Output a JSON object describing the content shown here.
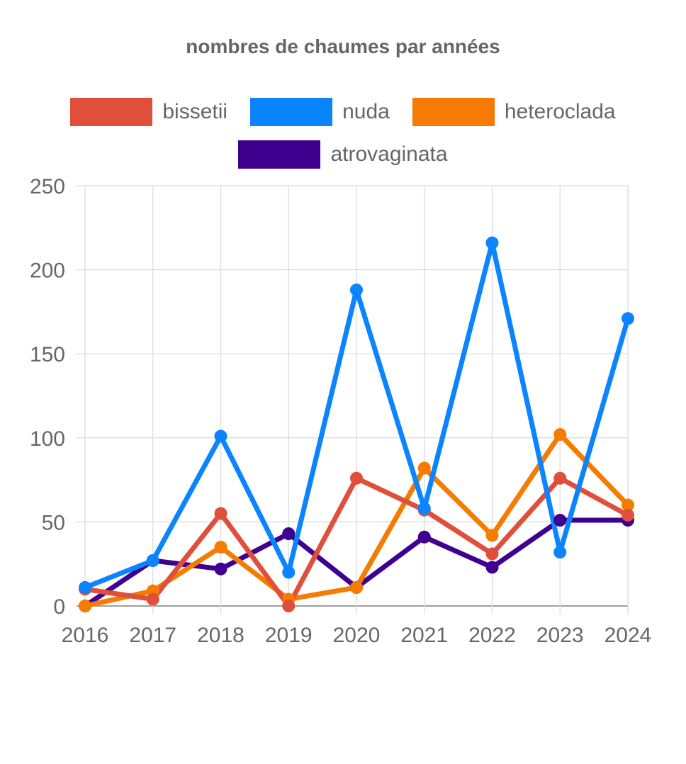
{
  "chart_data": {
    "type": "line",
    "title": "nombres de chaumes par années",
    "xlabel": "",
    "ylabel": "",
    "categories": [
      "2016",
      "2017",
      "2018",
      "2019",
      "2020",
      "2021",
      "2022",
      "2023",
      "2024"
    ],
    "ylim": [
      0,
      250
    ],
    "yticks": [
      "0",
      "50",
      "100",
      "150",
      "200",
      "250"
    ],
    "grid": true,
    "legend_position": "top",
    "series": [
      {
        "name": "bissetii",
        "color": "#e04f39",
        "values": [
          10,
          4,
          55,
          0,
          76,
          57,
          31,
          76,
          54
        ]
      },
      {
        "name": "nuda",
        "color": "#0a84ff",
        "values": [
          11,
          27,
          101,
          20,
          188,
          58,
          216,
          32,
          171
        ]
      },
      {
        "name": "heteroclada",
        "color": "#f57c00",
        "values": [
          0,
          9,
          35,
          4,
          11,
          82,
          42,
          102,
          60
        ]
      },
      {
        "name": "atrovaginata",
        "color": "#3f0090",
        "values": [
          0,
          27,
          22,
          43,
          11,
          41,
          23,
          51,
          51
        ]
      }
    ]
  }
}
